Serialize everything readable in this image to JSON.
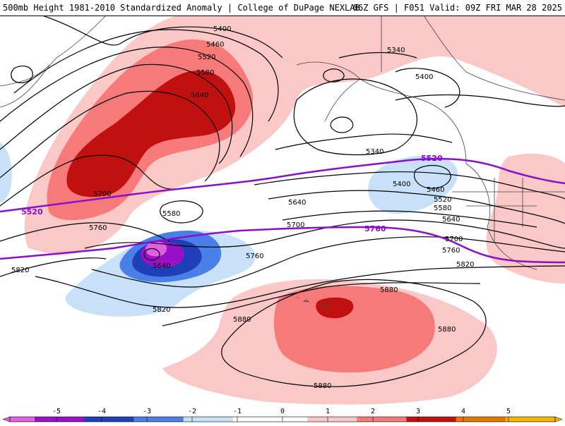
{
  "header": {
    "title_left": "500mb Height 1981-2010 Standardized Anomaly | College of DuPage NEXLAB",
    "title_right": "06Z GFS | F051 Valid: 09Z FRI MAR 28 2025"
  },
  "colors": {
    "neg5": "#e060e0",
    "neg4": "#9a10c8",
    "neg3": "#1f3fb8",
    "neg2": "#4a7ee8",
    "neg1": "#c8e0f8",
    "zero": "#ffffff",
    "pos1": "#fbc8c8",
    "pos2": "#f77a7a",
    "pos3": "#c01010",
    "pos4": "#e67800",
    "pos5": "#f5b400",
    "highlight_contour": "#8a0fc9"
  },
  "height_labels": [
    "5400",
    "5460",
    "5520",
    "5580",
    "5640",
    "5700",
    "5760",
    "5820",
    "5880",
    "5340",
    "5400",
    "5460",
    "5520",
    "5580",
    "5640",
    "5700",
    "5760",
    "5820",
    "5880",
    "5880",
    "5880",
    "5880",
    "5820",
    "5700",
    "5640",
    "5580",
    "5700",
    "5760",
    "5820",
    "5340",
    "5400"
  ],
  "highlight_labels": [
    "5520",
    "5760",
    "5520"
  ],
  "colorbar": {
    "ticks": [
      "-5",
      "-4",
      "-3",
      "-2",
      "-1",
      "0",
      "1",
      "2",
      "3",
      "4",
      "5"
    ]
  }
}
